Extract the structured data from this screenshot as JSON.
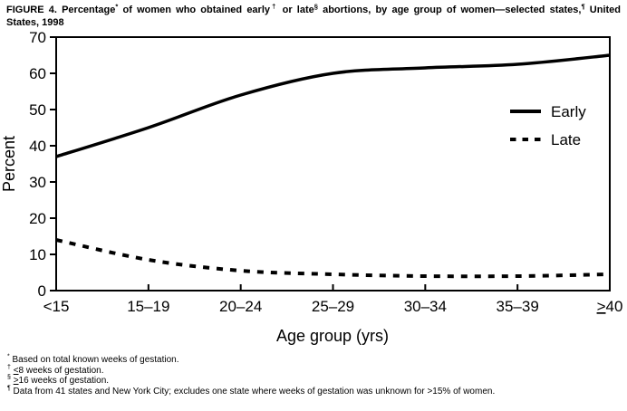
{
  "figure": {
    "title_lines": [
      [
        {
          "text": "FIGURE 4. Percentage"
        },
        {
          "sup": "*"
        },
        {
          "text": " of women who obtained early"
        },
        {
          "sup": "†"
        },
        {
          "text": " or late"
        },
        {
          "sup": "§"
        },
        {
          "text": " abortions, by age group of women—selected states,"
        },
        {
          "sup": "¶"
        },
        {
          "text": " United"
        }
      ],
      [
        {
          "text": "States, 1998"
        }
      ]
    ]
  },
  "chart_data": {
    "type": "line",
    "title": "FIGURE 4. Percentage of women who obtained early or late abortions, by age group of women—selected states, United States, 1998",
    "categories": [
      "<15",
      "15–19",
      "20–24",
      "25–29",
      "30–34",
      "35–39",
      "≥40"
    ],
    "series": [
      {
        "name": "Early",
        "style": "solid",
        "values": [
          37,
          45,
          54,
          60,
          61.5,
          62.5,
          65
        ]
      },
      {
        "name": "Late",
        "style": "dashed",
        "values": [
          14,
          8.5,
          5.5,
          4.5,
          4,
          4,
          4.5
        ]
      }
    ],
    "xlabel": "Age group (yrs)",
    "ylabel": "Percent",
    "ylim": [
      0,
      70
    ],
    "ytick_step": 10,
    "yticks": [
      0,
      10,
      20,
      30,
      40,
      50,
      60,
      70
    ],
    "grid": false,
    "legend_position": "inside-right",
    "line_color": "#000000",
    "background_color": "#ffffff"
  },
  "footnotes": [
    {
      "marker": "*",
      "text": "Based on total known weeks of gestation."
    },
    {
      "marker": "†",
      "text": "≤8 weeks of gestation."
    },
    {
      "marker": "§",
      "text": "≥16 weeks of gestation."
    },
    {
      "marker": "¶",
      "text": "Data from 41 states and New York City; excludes one state where weeks of gestation was unknown for >15% of women."
    }
  ]
}
